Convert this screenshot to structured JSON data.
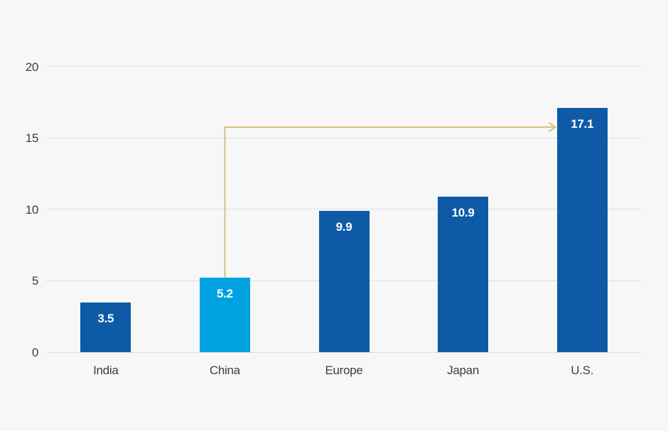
{
  "chart_data": {
    "type": "bar",
    "categories": [
      "India",
      "China",
      "Europe",
      "Japan",
      "U.S."
    ],
    "values": [
      3.5,
      5.2,
      9.9,
      10.9,
      17.1
    ],
    "value_labels": [
      "3.5",
      "5.2",
      "9.9",
      "10.9",
      "17.1"
    ],
    "bar_colors": [
      "#0e5aa6",
      "#00a2e1",
      "#0e5aa6",
      "#0e5aa6",
      "#0e5aa6"
    ],
    "highlighted_category": "China",
    "ylim": [
      0,
      20
    ],
    "yticks": [
      0,
      5,
      10,
      15,
      20
    ],
    "grid": true,
    "legend": "none",
    "annotation": {
      "type": "elbow-arrow",
      "from_category": "China",
      "to_category": "U.S.",
      "elbow_value": 15.75,
      "color": "#d6c283"
    },
    "colors": {
      "background": "#f7f7f7",
      "gridline": "#dedede",
      "axis_text": "#3e3e3e",
      "bar_default": "#0e5aa6",
      "bar_highlight": "#00a2e1",
      "bar_value_text": "#ffffff"
    }
  }
}
